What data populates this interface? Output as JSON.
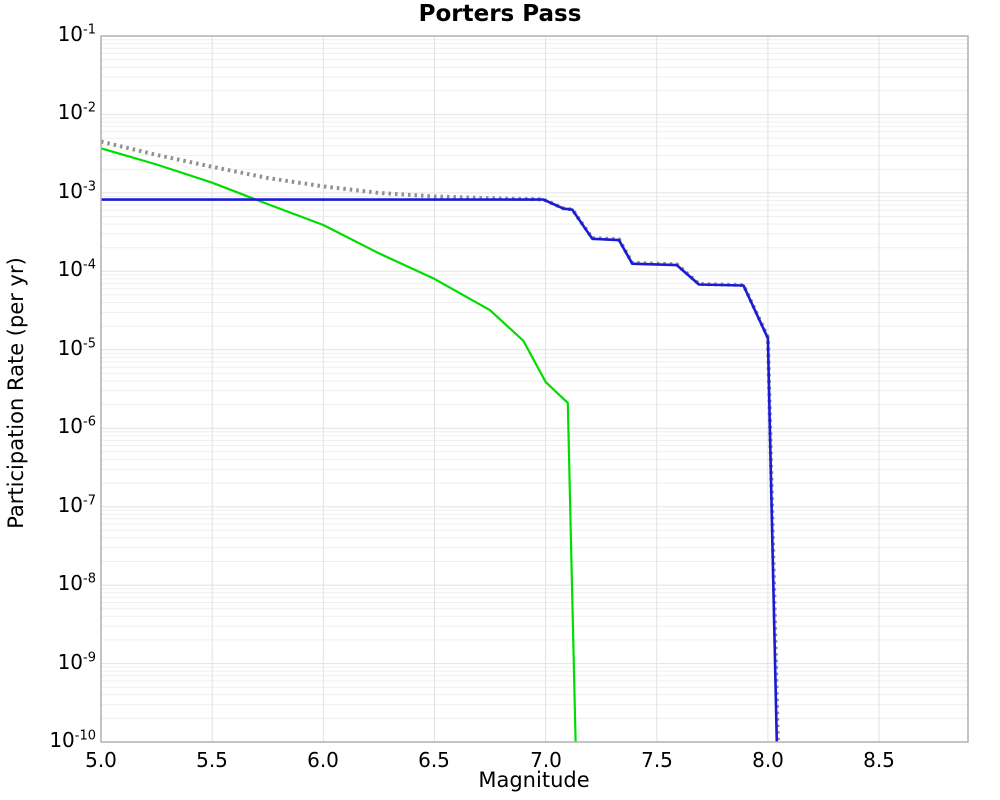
{
  "title": "Porters Pass",
  "axes": {
    "xlabel": "Magnitude",
    "ylabel": "Participation Rate (per yr)",
    "x_ticks": [
      5.0,
      5.5,
      6.0,
      6.5,
      7.0,
      7.5,
      8.0,
      8.5
    ],
    "x_tick_labels": [
      "5.0",
      "5.5",
      "6.0",
      "6.5",
      "7.0",
      "7.5",
      "8.0",
      "8.5"
    ],
    "y_tick_exponents": [
      -1,
      -2,
      -3,
      -4,
      -5,
      -6,
      -7,
      -8,
      -9,
      -10
    ]
  },
  "colors": {
    "background": "#ffffff",
    "frame": "#b0b0b0",
    "grid_minor": "#efefef",
    "grid_major": "#e2e2e2",
    "grid_vertical": "#e2e2e2",
    "total_dotted": "#909090",
    "background_gr_green": "#00dd00",
    "characteristic_blue": "#1b1bd6"
  },
  "chart_data": {
    "type": "line",
    "title": "Porters Pass",
    "xlabel": "Magnitude",
    "ylabel": "Participation Rate (per yr)",
    "xlim": [
      5.0,
      8.9
    ],
    "ylim": [
      1e-10,
      0.1
    ],
    "y_scale": "log",
    "grid": true,
    "legend": "none",
    "series": [
      {
        "name": "total-rate-dotted-gray",
        "style": "dotted",
        "color": "#909090",
        "width": 4,
        "points": [
          [
            5.0,
            0.0045
          ],
          [
            5.25,
            0.00305
          ],
          [
            5.5,
            0.00215
          ],
          [
            5.75,
            0.00155
          ],
          [
            6.0,
            0.00121
          ],
          [
            6.25,
            0.001
          ],
          [
            6.5,
            0.0009
          ],
          [
            6.75,
            0.000855
          ],
          [
            6.99,
            0.000825
          ],
          [
            7.08,
            0.000635
          ],
          [
            7.12,
            0.000615
          ],
          [
            7.21,
            0.000265
          ],
          [
            7.33,
            0.000255
          ],
          [
            7.39,
            0.000128
          ],
          [
            7.59,
            0.000123
          ],
          [
            7.69,
            6.9e-05
          ],
          [
            7.89,
            6.7e-05
          ],
          [
            8.0,
            1.45e-05
          ],
          [
            8.045,
            1e-10
          ]
        ]
      },
      {
        "name": "gutenberg-richter-green",
        "style": "solid",
        "color": "#00dd00",
        "width": 2.2,
        "points": [
          [
            5.0,
            0.0037
          ],
          [
            5.25,
            0.0023
          ],
          [
            5.5,
            0.00135
          ],
          [
            5.75,
            0.00072
          ],
          [
            6.0,
            0.00039
          ],
          [
            6.25,
            0.00017
          ],
          [
            6.5,
            8e-05
          ],
          [
            6.75,
            3.2e-05
          ],
          [
            6.9,
            1.3e-05
          ],
          [
            7.0,
            3.9e-06
          ],
          [
            7.1,
            2.1e-06
          ],
          [
            7.135,
            1e-10
          ]
        ]
      },
      {
        "name": "characteristic-blue",
        "style": "solid",
        "color": "#1b1bd6",
        "width": 2.6,
        "points": [
          [
            5.0,
            0.00082
          ],
          [
            6.99,
            0.00082
          ],
          [
            7.08,
            0.00063
          ],
          [
            7.12,
            0.00061
          ],
          [
            7.21,
            0.00026
          ],
          [
            7.33,
            0.00025
          ],
          [
            7.39,
            0.000125
          ],
          [
            7.59,
            0.00012
          ],
          [
            7.69,
            6.8e-05
          ],
          [
            7.89,
            6.6e-05
          ],
          [
            8.0,
            1.4e-05
          ],
          [
            8.04,
            1e-10
          ]
        ]
      }
    ]
  }
}
